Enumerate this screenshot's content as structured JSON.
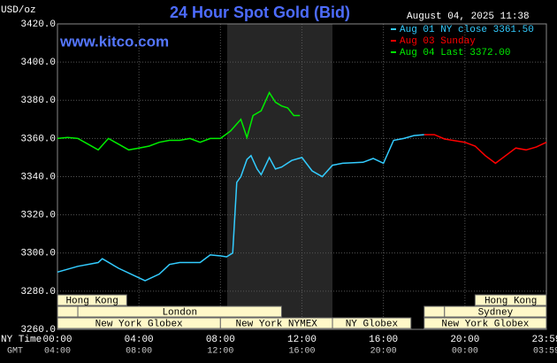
{
  "chart_data": {
    "type": "line",
    "title": "24 Hour Spot Gold (Bid)",
    "unit_label": "USD/oz",
    "timestamp": "August 04, 2025 11:38",
    "website": "www.kitco.com",
    "xlim": [
      0,
      24
    ],
    "ylim": [
      3260,
      3420
    ],
    "yticks": [
      {
        "value": 3260,
        "label": "3260.0"
      },
      {
        "value": 3280,
        "label": "3280.0"
      },
      {
        "value": 3300,
        "label": "3300.0"
      },
      {
        "value": 3320,
        "label": "3320.0"
      },
      {
        "value": 3340,
        "label": "3340.0"
      },
      {
        "value": 3360,
        "label": "3360.0"
      },
      {
        "value": 3380,
        "label": "3380.0"
      },
      {
        "value": 3400,
        "label": "3400.0"
      },
      {
        "value": 3420,
        "label": "3420.0"
      }
    ],
    "xticks": [
      {
        "value": 0,
        "label": "00:00"
      },
      {
        "value": 4,
        "label": "04:00"
      },
      {
        "value": 8,
        "label": "08:00"
      },
      {
        "value": 12,
        "label": "12:00"
      },
      {
        "value": 16,
        "label": "16:00"
      },
      {
        "value": 20,
        "label": "20:00"
      },
      {
        "value": 24,
        "label": "23:59"
      }
    ],
    "x_row_label": "NY Time",
    "gmt_row_label": "GMT",
    "gmt_tick_labels": [
      "04:00",
      "08:00",
      "12:00",
      "16:00",
      "20:00",
      "00:00",
      "03:59"
    ],
    "grid": true,
    "highlight": [
      8.33,
      13.5
    ],
    "sessions": [
      {
        "label": "Hong Kong",
        "start": 0,
        "end": 3.4,
        "row": 0
      },
      {
        "label": "Hong Kong",
        "start": 20.5,
        "end": 24,
        "row": 0
      },
      {
        "label": "London",
        "start": 1,
        "end": 11,
        "row": 1
      },
      {
        "label": "Sydney",
        "start": 19,
        "end": 24,
        "row": 1
      },
      {
        "label": "New York Globex",
        "start": 0,
        "end": 8,
        "row": 2
      },
      {
        "label": "New York NYMEX",
        "start": 8,
        "end": 13.5,
        "row": 2
      },
      {
        "label": "NY Globex",
        "start": 13.5,
        "end": 17.35,
        "row": 2
      },
      {
        "label": "New York Globex",
        "start": 18,
        "end": 24,
        "row": 2
      }
    ],
    "series": [
      {
        "name": "Aug 01 NY close 3361.50",
        "color": "#33ccff",
        "x": [
          0,
          1,
          2,
          2.2,
          3,
          4,
          4.3,
          5,
          5.5,
          6,
          7,
          7.5,
          8,
          8.3,
          8.6,
          8.8,
          9,
          9.3,
          9.5,
          9.8,
          10,
          10.4,
          10.7,
          11,
          11.5,
          12,
          12.5,
          13,
          13.5,
          14,
          15,
          15.5,
          16,
          16.5,
          17,
          17.5,
          18
        ],
        "values": [
          3290,
          3293,
          3295,
          3297,
          3292,
          3287,
          3285.5,
          3289,
          3294,
          3295,
          3295,
          3299,
          3298.5,
          3298,
          3300,
          3337,
          3340,
          3349,
          3351,
          3344,
          3341,
          3350,
          3344,
          3345,
          3348.5,
          3350,
          3343,
          3340,
          3346,
          3347,
          3347.5,
          3349.5,
          3347,
          3359,
          3360,
          3361.5,
          3362
        ]
      },
      {
        "name": "Aug 03 Sunday",
        "color": "#ff0000",
        "x": [
          18,
          18.5,
          19,
          20,
          20.5,
          21,
          21.5,
          22,
          22.5,
          23,
          23.5,
          24
        ],
        "values": [
          3362,
          3362,
          3359.7,
          3358,
          3356,
          3351,
          3347,
          3351,
          3355,
          3354,
          3355.5,
          3358
        ]
      },
      {
        "name": "Aug 04 Last 3372.00",
        "color": "#00ee00",
        "x": [
          0,
          0.5,
          1,
          1.5,
          2,
          2.5,
          3,
          3.5,
          4,
          4.5,
          5,
          5.5,
          6,
          6.5,
          7,
          7.5,
          8,
          8.5,
          9,
          9.3,
          9.6,
          10,
          10.4,
          10.7,
          11,
          11.3,
          11.6,
          11.9
        ],
        "values": [
          3360,
          3360.5,
          3360,
          3357,
          3354,
          3360,
          3357,
          3354,
          3355,
          3356,
          3358,
          3359,
          3359,
          3360,
          3358,
          3360,
          3360,
          3364,
          3370,
          3360.5,
          3372,
          3374.5,
          3384,
          3379,
          3377,
          3376,
          3372,
          3372
        ]
      }
    ]
  }
}
